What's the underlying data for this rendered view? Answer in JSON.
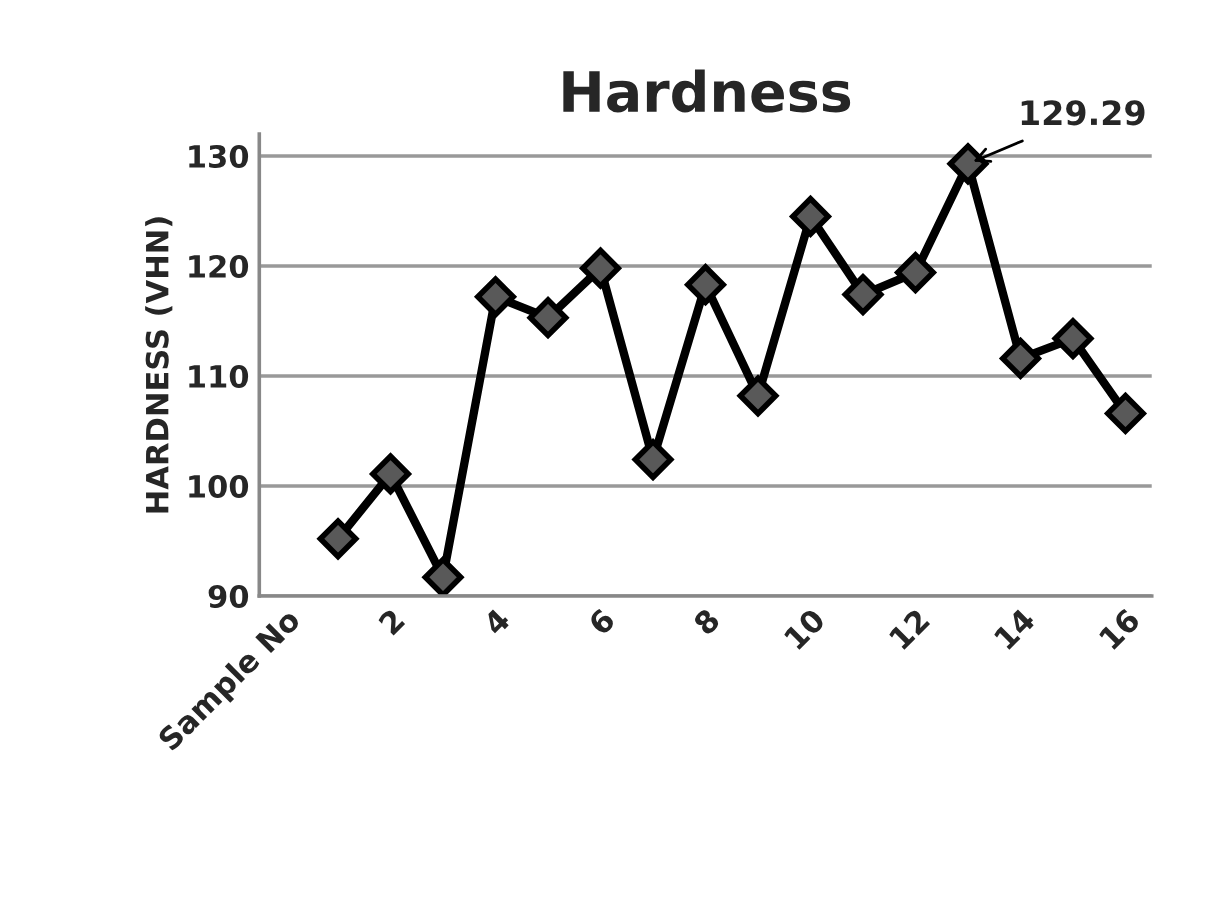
{
  "chart_data": {
    "type": "line",
    "title": "Hardness",
    "ylabel": "HARDNESS (VHN)",
    "categories": [
      "Sample No",
      null,
      "2",
      null,
      "4",
      null,
      "6",
      null,
      "8",
      null,
      "10",
      null,
      "12",
      null,
      "14",
      null,
      "16"
    ],
    "series": [
      {
        "color": "#000000",
        "values": [
          null,
          95.2,
          101.1,
          91.7,
          117.2,
          115.3,
          119.8,
          102.4,
          118.3,
          108.2,
          124.5,
          117.4,
          119.4,
          129.29,
          111.6,
          113.4,
          106.6
        ],
        "value_labels": [
          null,
          null,
          null,
          null,
          null,
          null,
          null,
          null,
          null,
          null,
          null,
          null,
          null,
          "129.29",
          null,
          null,
          null
        ]
      }
    ],
    "ylim": [
      90,
      132
    ],
    "yticks": [
      90,
      100,
      110,
      120,
      130
    ],
    "grid": "y",
    "marker": "diamond",
    "line_style": "solid",
    "legend": false
  }
}
